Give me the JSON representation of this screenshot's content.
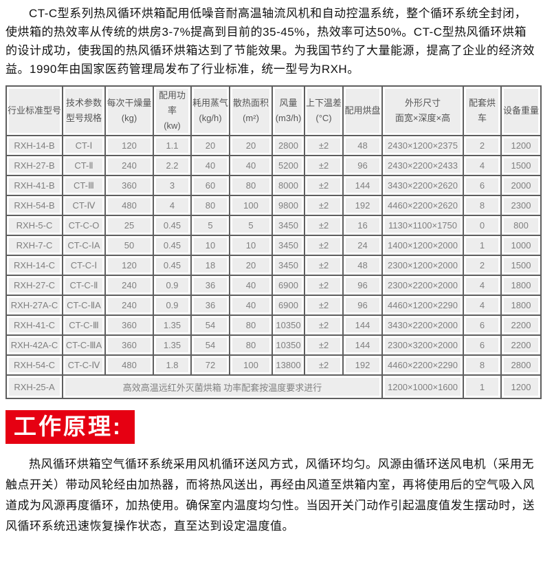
{
  "intro_paragraph": {
    "text": "CT-C型系列热风循环烘箱配用低噪音耐高温轴流风机和自动控温系统，整个循环系统全封闭，使烘箱的热效率从传统的烘房3-7%提高到目前的35-45%，热效率可达50%。CT-C型热风循环烘箱的设计成功，使我国的热风循环烘箱达到了节能效果。为我国节约了大量能源，提高了企业的经济效益。1990年由国家医药管理局发布了行业标准，统一型号为RXH。"
  },
  "spec_table": {
    "headers": [
      {
        "lines": [
          "行业标准型号"
        ]
      },
      {
        "lines": [
          "技术参数",
          "型号规格"
        ]
      },
      {
        "lines": [
          "每次干燥量",
          "(kg)"
        ]
      },
      {
        "lines": [
          "配用功率",
          "(kw)"
        ]
      },
      {
        "lines": [
          "耗用蒸气",
          "(kg/h)"
        ]
      },
      {
        "lines": [
          "散热面积",
          "(m²)"
        ]
      },
      {
        "lines": [
          "风量",
          "(m3/h)"
        ]
      },
      {
        "lines": [
          "上下温差",
          "(°C)"
        ]
      },
      {
        "lines": [
          "配用烘盘"
        ]
      },
      {
        "lines": [
          "外形尺寸",
          "面宽×深度×高"
        ]
      },
      {
        "lines": [
          "配套烘车"
        ]
      },
      {
        "lines": [
          "设备重量"
        ]
      }
    ],
    "rows": [
      [
        "RXH-14-B",
        "CT-Ⅰ",
        "120",
        "1.1",
        "20",
        "20",
        "2800",
        "±2",
        "48",
        "2430×1200×2375",
        "2",
        "1200"
      ],
      [
        "RXH-27-B",
        "CT-Ⅱ",
        "240",
        "2.2",
        "40",
        "40",
        "5200",
        "±2",
        "96",
        "2430×2200×2433",
        "4",
        "1500"
      ],
      [
        "RXH-41-B",
        "CT-Ⅲ",
        "360",
        "3",
        "60",
        "80",
        "8000",
        "±2",
        "144",
        "3430×2200×2620",
        "6",
        "2000"
      ],
      [
        "RXH-54-B",
        "CT-Ⅳ",
        "480",
        "4",
        "80",
        "100",
        "9800",
        "±2",
        "192",
        "4460×2200×2620",
        "8",
        "2300"
      ],
      [
        "RXH-5-C",
        "CT-C-O",
        "25",
        "0.45",
        "5",
        "5",
        "3450",
        "±2",
        "16",
        "1130×1100×1750",
        "0",
        "800"
      ],
      [
        "RXH-7-C",
        "CT-C-ⅠA",
        "50",
        "0.45",
        "10",
        "10",
        "3450",
        "±2",
        "24",
        "1400×1200×2000",
        "1",
        "1000"
      ],
      [
        "RXH-14-C",
        "CT-C-Ⅰ",
        "120",
        "0.45",
        "18",
        "20",
        "3450",
        "±2",
        "48",
        "2300×1200×2000",
        "2",
        "1500"
      ],
      [
        "RXH-27-C",
        "CT-C-Ⅱ",
        "240",
        "0.9",
        "36",
        "40",
        "6900",
        "±2",
        "96",
        "2300×2200×2000",
        "4",
        "1800"
      ],
      [
        "RXH-27A-C",
        "CT-C-ⅡA",
        "240",
        "0.9",
        "36",
        "40",
        "6900",
        "±2",
        "96",
        "4460×1200×2290",
        "4",
        "1800"
      ],
      [
        "RXH-41-C",
        "CT-C-Ⅲ",
        "360",
        "1.35",
        "54",
        "80",
        "10350",
        "±2",
        "144",
        "3430×2200×2000",
        "6",
        "2200"
      ],
      [
        "RXH-42A-C",
        "CT-C-ⅢA",
        "360",
        "1.35",
        "54",
        "80",
        "10350",
        "±2",
        "144",
        "2300×3200×2000",
        "6",
        "2200"
      ],
      [
        "RXH-54-C",
        "CT-C-Ⅳ",
        "480",
        "1.8",
        "72",
        "100",
        "13800",
        "±2",
        "192",
        "4460×2200×2290",
        "8",
        "2800"
      ]
    ],
    "special_row": {
      "model": "RXH-25-A",
      "note": "高效高温远红外灭菌烘箱 功率配套按温度要求进行",
      "note_colspan": 8,
      "dimensions": "1200×1000×1600",
      "trolley": "1",
      "weight": "1200"
    }
  },
  "section_banner": {
    "title": "工作原理:",
    "background": "#e60012",
    "text_color": "#ffffff"
  },
  "principle_paragraph": {
    "text": "热风循环烘箱空气循环系统采用风机循环送风方式，风循环均匀。风源由循环送风电机（采用无触点开关）带动风轮经由加热器，而将热风送出，再经由风道至烘箱内室，再将使用后的空气吸入风道成为风源再度循环，加热使用。确保室内温度均匀性。当因开关门动作引起温度值发生摆动时，送风循环系统迅速恢复操作状态，直至达到设定温度值。"
  },
  "colors": {
    "table_border": "#5e5e5e",
    "cell_background": "#ededed",
    "cell_text": "#7f7f7f",
    "header_text": "#555555",
    "body_text": "#111111"
  }
}
